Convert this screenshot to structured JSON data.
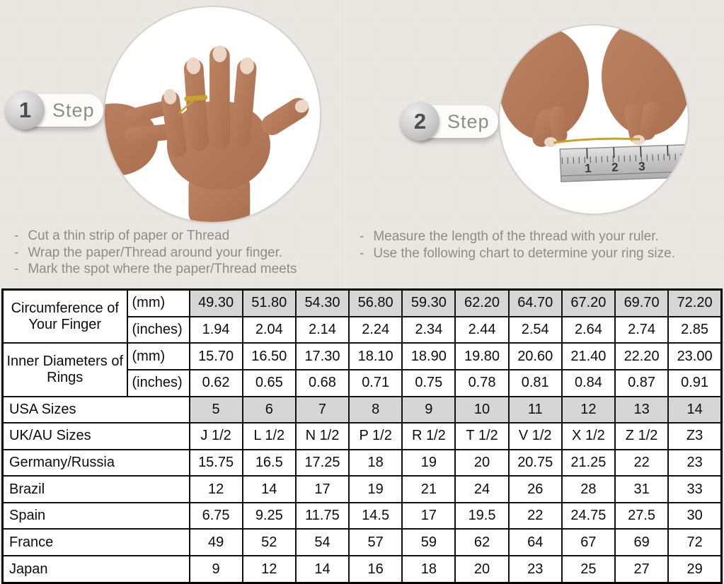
{
  "colors": {
    "background": "#eae7e2",
    "table_shaded": "#d6d6d6",
    "table_border": "#000000",
    "muted_text": "#8f8c87",
    "skin_tone": "#b57c5c",
    "thread_gold": "#c9a22c",
    "ruler_silver": "#c9c9c9"
  },
  "steps": [
    {
      "number": "1",
      "label": "Step",
      "image": "hand-with-thread-around-finger-photo",
      "instructions": [
        "Cut a thin strip of paper or Thread",
        "Wrap the paper/Thread around your finger.",
        "Mark the spot where the paper/Thread meets"
      ]
    },
    {
      "number": "2",
      "label": "Step",
      "image": "hands-measuring-thread-with-ruler-photo",
      "instructions": [
        "Measure the length of the thread with your ruler.",
        "Use the following chart to determine your ring size."
      ],
      "ruler_numbers": [
        "1",
        "2",
        "3"
      ]
    }
  ],
  "table": {
    "rows": [
      {
        "label": "Circumference of Your Finger",
        "label_rowspan": 2,
        "unit": "(mm)",
        "shaded": true,
        "values": [
          "49.30",
          "51.80",
          "54.30",
          "56.80",
          "59.30",
          "62.20",
          "64.70",
          "67.20",
          "69.70",
          "72.20"
        ]
      },
      {
        "unit": "(inches)",
        "values": [
          "1.94",
          "2.04",
          "2.14",
          "2.24",
          "2.34",
          "2.44",
          "2.54",
          "2.64",
          "2.74",
          "2.85"
        ]
      },
      {
        "label": "Inner Diameters of Rings",
        "label_rowspan": 2,
        "unit": "(mm)",
        "values": [
          "15.70",
          "16.50",
          "17.30",
          "18.10",
          "18.90",
          "19.80",
          "20.60",
          "21.40",
          "22.20",
          "23.00"
        ]
      },
      {
        "unit": "(inches)",
        "values": [
          "0.62",
          "0.65",
          "0.68",
          "0.71",
          "0.75",
          "0.78",
          "0.81",
          "0.84",
          "0.87",
          "0.91"
        ]
      },
      {
        "label": "USA Sizes",
        "label_colspan": 2,
        "shaded": true,
        "values": [
          "5",
          "6",
          "7",
          "8",
          "9",
          "10",
          "11",
          "12",
          "13",
          "14"
        ]
      },
      {
        "label": "UK/AU Sizes",
        "label_colspan": 2,
        "values": [
          "J 1/2",
          "L 1/2",
          "N 1/2",
          "P 1/2",
          "R 1/2",
          "T 1/2",
          "V 1/2",
          "X 1/2",
          "Z 1/2",
          "Z3"
        ]
      },
      {
        "label": "Germany/Russia",
        "label_colspan": 2,
        "values": [
          "15.75",
          "16.5",
          "17.25",
          "18",
          "19",
          "20",
          "20.75",
          "21.25",
          "22",
          "23"
        ]
      },
      {
        "label": "Brazil",
        "label_colspan": 2,
        "values": [
          "12",
          "14",
          "17",
          "19",
          "21",
          "24",
          "26",
          "28",
          "31",
          "33"
        ]
      },
      {
        "label": "Spain",
        "label_colspan": 2,
        "values": [
          "6.75",
          "9.25",
          "11.75",
          "14.5",
          "17",
          "19.5",
          "22",
          "24.75",
          "27.5",
          "30"
        ]
      },
      {
        "label": "France",
        "label_colspan": 2,
        "values": [
          "49",
          "52",
          "54",
          "57",
          "59",
          "62",
          "64",
          "67",
          "69",
          "72"
        ]
      },
      {
        "label": "Japan",
        "label_colspan": 2,
        "values": [
          "9",
          "12",
          "14",
          "16",
          "18",
          "20",
          "23",
          "25",
          "27",
          "29"
        ]
      }
    ]
  }
}
